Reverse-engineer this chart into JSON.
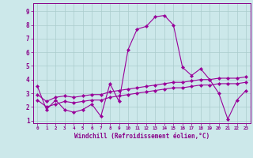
{
  "xlabel": "Windchill (Refroidissement éolien,°C)",
  "background_color": "#cce8ea",
  "line_color": "#990099",
  "grid_color": "#aacccc",
  "xlim": [
    -0.5,
    23.5
  ],
  "ylim": [
    0.8,
    9.6
  ],
  "xticks": [
    0,
    1,
    2,
    3,
    4,
    5,
    6,
    7,
    8,
    9,
    10,
    11,
    12,
    13,
    14,
    15,
    16,
    17,
    18,
    19,
    20,
    21,
    22,
    23
  ],
  "yticks": [
    1,
    2,
    3,
    4,
    5,
    6,
    7,
    8,
    9
  ],
  "line1_x": [
    0,
    1,
    2,
    3,
    4,
    5,
    6,
    7,
    8,
    9,
    10,
    11,
    12,
    13,
    14,
    15,
    16,
    17,
    18,
    19,
    20,
    21,
    22,
    23
  ],
  "line1_y": [
    3.5,
    1.8,
    2.5,
    1.8,
    1.6,
    1.8,
    2.2,
    1.3,
    3.7,
    2.4,
    6.2,
    7.7,
    7.9,
    8.6,
    8.7,
    8.0,
    4.9,
    4.3,
    4.8,
    4.0,
    3.0,
    1.1,
    2.5,
    3.2
  ],
  "line2_x": [
    0,
    1,
    2,
    3,
    4,
    5,
    6,
    7,
    8,
    9,
    10,
    11,
    12,
    13,
    14,
    15,
    16,
    17,
    18,
    19,
    20,
    21,
    22,
    23
  ],
  "line2_y": [
    2.9,
    2.4,
    2.7,
    2.8,
    2.7,
    2.8,
    2.9,
    2.9,
    3.1,
    3.2,
    3.3,
    3.4,
    3.5,
    3.6,
    3.7,
    3.8,
    3.8,
    3.9,
    4.0,
    4.0,
    4.1,
    4.1,
    4.1,
    4.2
  ],
  "line3_x": [
    0,
    1,
    2,
    3,
    4,
    5,
    6,
    7,
    8,
    9,
    10,
    11,
    12,
    13,
    14,
    15,
    16,
    17,
    18,
    19,
    20,
    21,
    22,
    23
  ],
  "line3_y": [
    2.5,
    2.0,
    2.2,
    2.4,
    2.3,
    2.4,
    2.5,
    2.5,
    2.7,
    2.8,
    2.9,
    3.0,
    3.1,
    3.2,
    3.3,
    3.4,
    3.4,
    3.5,
    3.6,
    3.6,
    3.7,
    3.7,
    3.7,
    3.8
  ],
  "tick_color": "#880088",
  "xlabel_fontsize": 5.5,
  "ytick_fontsize": 5.5,
  "xtick_fontsize": 4.2
}
